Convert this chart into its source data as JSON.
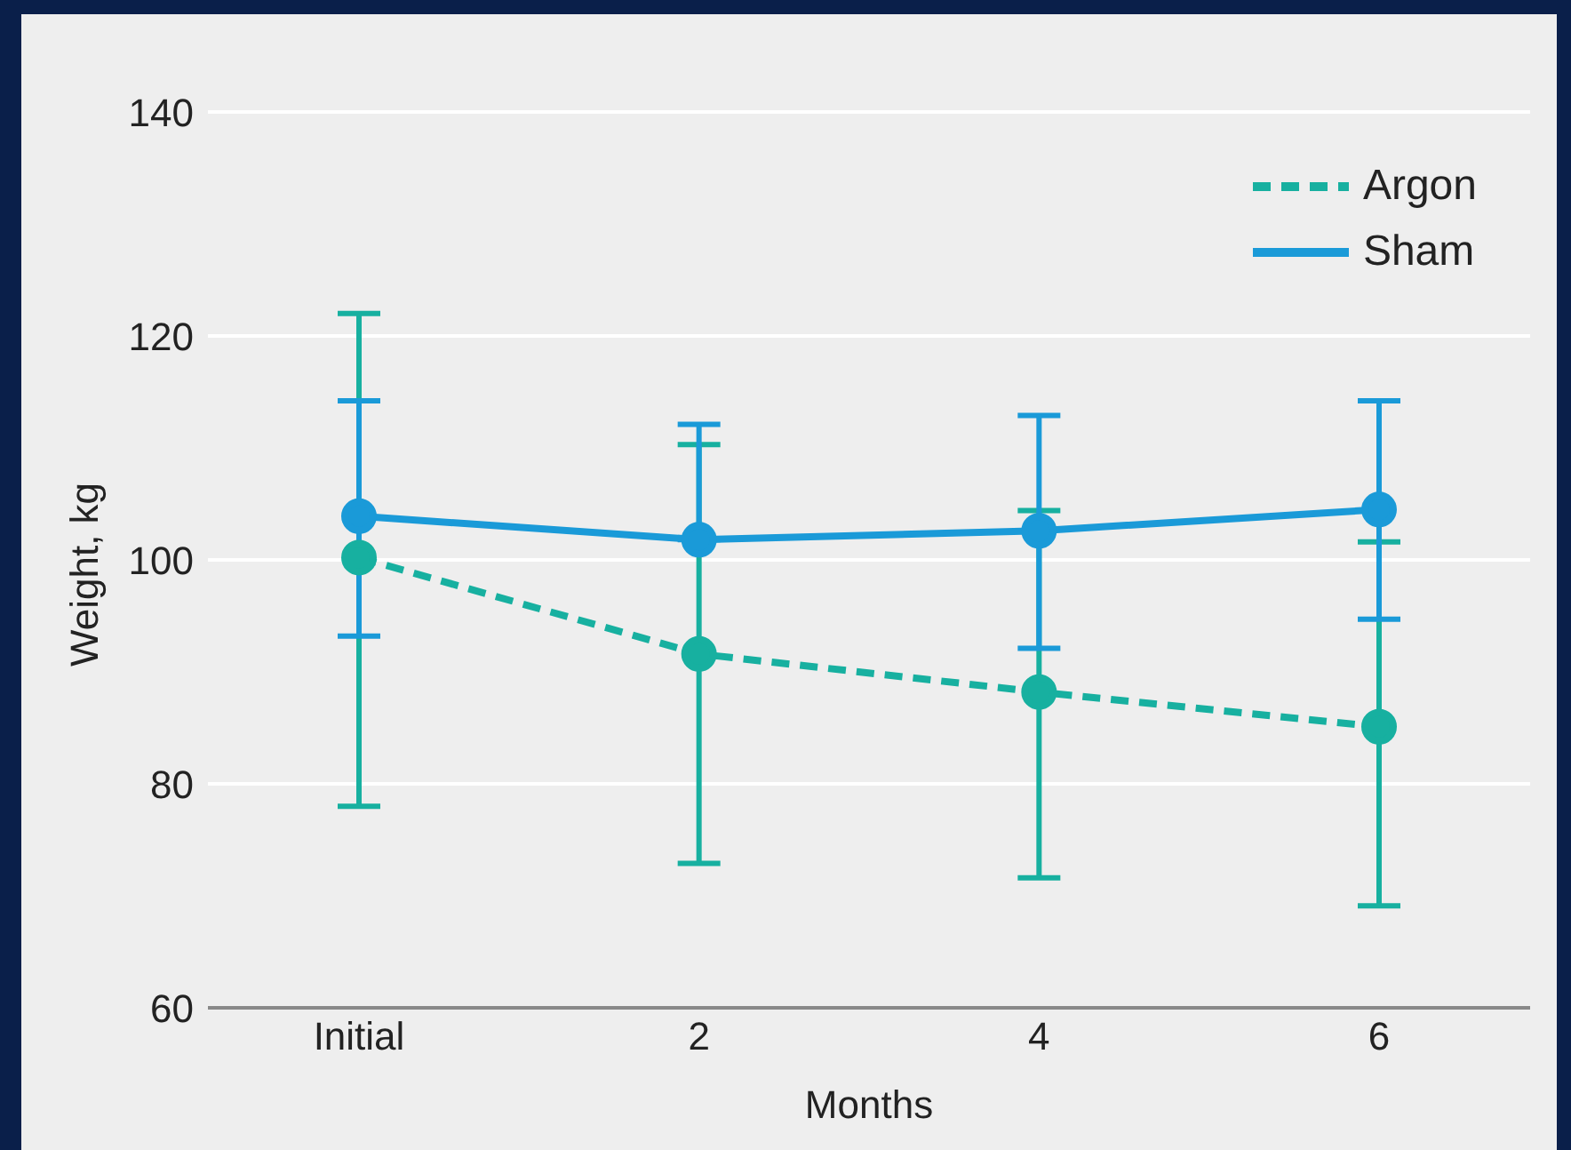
{
  "chart_data": {
    "type": "line",
    "xlabel": "Months",
    "ylabel": "Weight, kg",
    "categories": [
      "Initial",
      "2",
      "4",
      "6"
    ],
    "series": [
      {
        "name": "Argon",
        "color": "#17b0a0",
        "line_style": "dashed",
        "values": [
          100.2,
          91.6,
          88.2,
          85.1
        ],
        "errors": [
          [
            78,
            122
          ],
          [
            72.9,
            110.3
          ],
          [
            71.6,
            104.4
          ],
          [
            69.1,
            101.6
          ]
        ]
      },
      {
        "name": "Sham",
        "color": "#1a9ad8",
        "line_style": "solid",
        "values": [
          103.9,
          101.8,
          102.6,
          104.5
        ],
        "errors": [
          [
            93.2,
            114.2
          ],
          [
            101.8,
            112.1
          ],
          [
            92.1,
            112.9
          ],
          [
            94.7,
            114.2
          ]
        ]
      }
    ],
    "ylim": [
      60,
      140
    ],
    "yticks": [
      60,
      80,
      100,
      120,
      140
    ],
    "grid": "y",
    "legend": "top right",
    "marker": "circle"
  }
}
